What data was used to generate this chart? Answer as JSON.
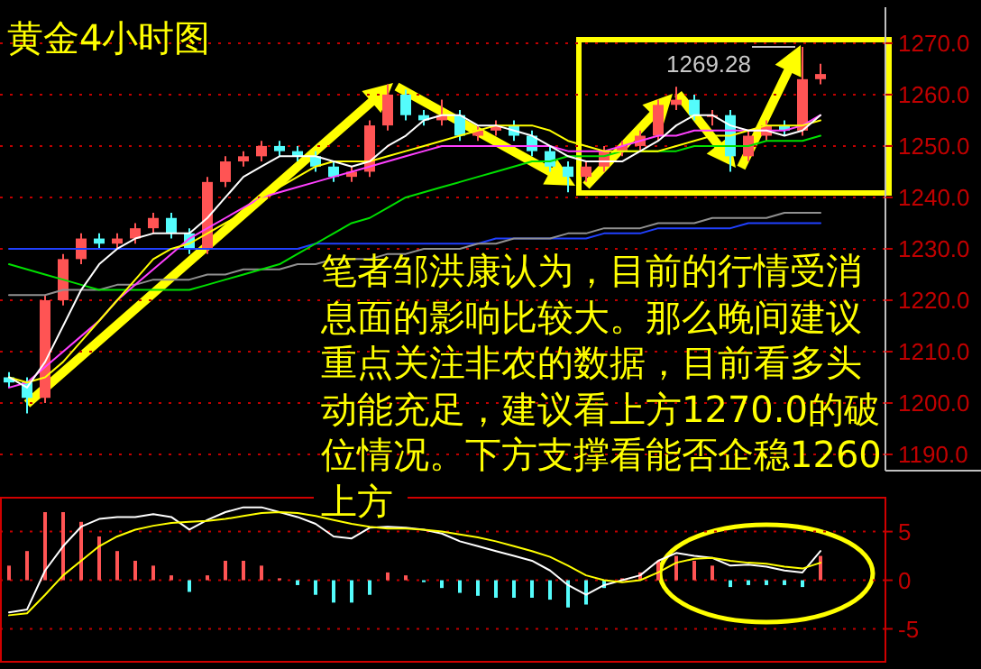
{
  "chart_data": [
    {
      "type": "candlestick",
      "title": "黄金4小时图",
      "annotations": [
        "笔者邹洪康认为，目前的行情受消息面的影响比较大。那么晚间建议重点关注非农的数据，目前看多头动能充足，建议看上方1270.0的破位情况。下方支撑看能否企稳1260上方",
        "1269.28"
      ],
      "categories": [
        null,
        null,
        null,
        null,
        null,
        null,
        null,
        null,
        null,
        null,
        null,
        null,
        null,
        null,
        null,
        null,
        null,
        null,
        null,
        null,
        null,
        null,
        null,
        null,
        null,
        null,
        null,
        null,
        null,
        null,
        null,
        null,
        null,
        null,
        null,
        null,
        null,
        null,
        null,
        null,
        null,
        null,
        null,
        null,
        null,
        null
      ],
      "ohlc": [
        [
          1205,
          1206,
          1203,
          1204
        ],
        [
          1204,
          1205,
          1198,
          1201
        ],
        [
          1201,
          1221,
          1200,
          1220
        ],
        [
          1220,
          1229,
          1219,
          1228
        ],
        [
          1228,
          1233,
          1227,
          1232
        ],
        [
          1232,
          1233,
          1230,
          1231
        ],
        [
          1231,
          1233,
          1230,
          1232
        ],
        [
          1232,
          1235,
          1231,
          1234
        ],
        [
          1234,
          1237,
          1233,
          1236
        ],
        [
          1236,
          1237,
          1232,
          1233
        ],
        [
          1233,
          1234,
          1229,
          1230
        ],
        [
          1230,
          1244,
          1229,
          1243
        ],
        [
          1243,
          1248,
          1242,
          1247
        ],
        [
          1247,
          1249,
          1246,
          1248
        ],
        [
          1248,
          1251,
          1247,
          1250
        ],
        [
          1250,
          1251,
          1248,
          1249
        ],
        [
          1249,
          1250,
          1247,
          1248
        ],
        [
          1248,
          1249,
          1245,
          1246
        ],
        [
          1246,
          1247,
          1243,
          1244
        ],
        [
          1244,
          1246,
          1243,
          1245
        ],
        [
          1245,
          1255,
          1244,
          1254
        ],
        [
          1254,
          1262,
          1253,
          1260
        ],
        [
          1260,
          1261,
          1255,
          1256
        ],
        [
          1256,
          1257,
          1254,
          1255
        ],
        [
          1255,
          1259,
          1254,
          1256
        ],
        [
          1256,
          1257,
          1251,
          1252
        ],
        [
          1252,
          1254,
          1251,
          1253
        ],
        [
          1253,
          1255,
          1252,
          1254
        ],
        [
          1254,
          1255,
          1251,
          1252
        ],
        [
          1252,
          1253,
          1248,
          1249
        ],
        [
          1249,
          1250,
          1245,
          1246
        ],
        [
          1246,
          1247,
          1241,
          1244
        ],
        [
          1244,
          1247,
          1243,
          1246
        ],
        [
          1246,
          1250,
          1245,
          1249
        ],
        [
          1249,
          1251,
          1248,
          1250
        ],
        [
          1250,
          1253,
          1249,
          1252
        ],
        [
          1252,
          1259,
          1251,
          1258
        ],
        [
          1258,
          1261.5,
          1257,
          1259
        ],
        [
          1259,
          1260,
          1255,
          1256
        ],
        [
          1256,
          1257,
          1254,
          1256
        ],
        [
          1256,
          1257,
          1245,
          1248
        ],
        [
          1248,
          1253,
          1247,
          1252
        ],
        [
          1252,
          1255,
          1251,
          1254
        ],
        [
          1254,
          1255,
          1252,
          1253
        ],
        [
          1253,
          1269.28,
          1252,
          1263
        ],
        [
          1263,
          1266,
          1262,
          1264
        ]
      ],
      "colors": [
        "#54fcfc",
        "#54fcfc",
        "#ff5454",
        "#ff5454",
        "#ff5454",
        "#54fcfc",
        "#ff5454",
        "#ff5454",
        "#ff5454",
        "#54fcfc",
        "#54fcfc",
        "#ff5454",
        "#ff5454",
        "#ff5454",
        "#ff5454",
        "#54fcfc",
        "#54fcfc",
        "#54fcfc",
        "#54fcfc",
        "#ff5454",
        "#ff5454",
        "#ff5454",
        "#54fcfc",
        "#54fcfc",
        "#ff5454",
        "#54fcfc",
        "#ff5454",
        "#ff5454",
        "#54fcfc",
        "#54fcfc",
        "#54fcfc",
        "#54fcfc",
        "#ff5454",
        "#ff5454",
        "#ff5454",
        "#ff5454",
        "#ff5454",
        "#ff5454",
        "#54fcfc",
        "#ff5454",
        "#54fcfc",
        "#ff5454",
        "#ff5454",
        "#54fcfc",
        "#ff5454",
        "#ff5454"
      ],
      "series": [
        {
          "type": "line",
          "color": "#2040ff",
          "values": [
            1230,
            1230,
            1230,
            1230,
            1230,
            1230,
            1230,
            1230,
            1230,
            1230,
            1230,
            1230,
            1230,
            1230,
            1230,
            1230,
            1230,
            1231,
            1231,
            1231,
            1231,
            1231,
            1231,
            1231,
            1231,
            1231,
            1231,
            1232,
            1232,
            1232,
            1232,
            1232,
            1232,
            1233,
            1233,
            1233,
            1234,
            1234,
            1234,
            1234,
            1234,
            1235,
            1235,
            1235,
            1235,
            1235
          ]
        },
        {
          "type": "line",
          "color": "#909090",
          "values": [
            1221,
            1221,
            1221,
            1222,
            1222,
            1222,
            1223,
            1223,
            1224,
            1224,
            1224,
            1225,
            1225,
            1226,
            1226,
            1226,
            1227,
            1227,
            1228,
            1228,
            1228,
            1229,
            1229,
            1230,
            1230,
            1230,
            1231,
            1231,
            1232,
            1232,
            1232,
            1233,
            1233,
            1234,
            1234,
            1234,
            1235,
            1235,
            1235,
            1236,
            1236,
            1236,
            1236,
            1237,
            1237,
            1237
          ]
        },
        {
          "type": "line",
          "color": "#00e000",
          "values": [
            1227,
            1226,
            1225,
            1224,
            1223,
            1222,
            1222,
            1222,
            1222,
            1222,
            1222,
            1223,
            1224,
            1225,
            1226,
            1227,
            1229,
            1231,
            1233,
            1235,
            1236,
            1238,
            1240,
            1241,
            1242,
            1243,
            1244,
            1245,
            1246,
            1247,
            1247,
            1248,
            1248,
            1248,
            1249,
            1249,
            1249,
            1249,
            1250,
            1250,
            1250,
            1250,
            1251,
            1251,
            1251,
            1252
          ]
        },
        {
          "type": "line",
          "color": "#ff40ff",
          "values": [
            1203,
            1204,
            1207,
            1210,
            1213,
            1216,
            1220,
            1223,
            1226,
            1229,
            1232,
            1234,
            1236,
            1238,
            1240,
            1241,
            1242,
            1243,
            1244,
            1245,
            1246,
            1247,
            1248,
            1249,
            1250,
            1250,
            1250,
            1250,
            1250,
            1250,
            1250,
            1249,
            1249,
            1249,
            1250,
            1251,
            1252,
            1252,
            1253,
            1253,
            1253,
            1253,
            1253,
            1253,
            1254,
            1256
          ]
        },
        {
          "type": "line",
          "color": "#ffff00",
          "values": [
            1205,
            1204,
            1205,
            1208,
            1212,
            1216,
            1220,
            1224,
            1228,
            1230,
            1231,
            1233,
            1235,
            1237,
            1240,
            1242,
            1244,
            1246,
            1247,
            1247,
            1247,
            1248,
            1249,
            1250,
            1251,
            1252,
            1253,
            1254,
            1254,
            1254,
            1253,
            1251,
            1250,
            1249,
            1249,
            1249,
            1249,
            1250,
            1251,
            1252,
            1252,
            1253,
            1254,
            1254,
            1254,
            1255
          ]
        },
        {
          "type": "line",
          "color": "#ffffff",
          "values": [
            1205,
            1203,
            1208,
            1215,
            1222,
            1227,
            1230,
            1232,
            1233,
            1233,
            1233,
            1236,
            1240,
            1244,
            1246,
            1248,
            1248,
            1248,
            1247,
            1246,
            1247,
            1250,
            1252,
            1255,
            1256,
            1256,
            1254,
            1254,
            1253,
            1252,
            1250,
            1248,
            1247,
            1247,
            1247,
            1249,
            1251,
            1254,
            1256,
            1256,
            1254,
            1253,
            1253,
            1252,
            1253,
            1256
          ]
        }
      ],
      "ylim": [
        1190,
        1277
      ],
      "yticks": [
        {
          "value": 1190,
          "label": "1190.0"
        },
        {
          "value": 1200,
          "label": "1200.0"
        },
        {
          "value": 1210,
          "label": "1210.0"
        },
        {
          "value": 1220,
          "label": "1220.0"
        },
        {
          "value": 1230,
          "label": "1230.0"
        },
        {
          "value": 1240,
          "label": "1240.0"
        },
        {
          "value": 1250,
          "label": "1250.0"
        },
        {
          "value": 1260,
          "label": "1260.0"
        },
        {
          "value": 1270,
          "label": "1270.0"
        }
      ],
      "grid": "y"
    },
    {
      "type": "bar",
      "categories": [
        null,
        null,
        null,
        null,
        null,
        null,
        null,
        null,
        null,
        null,
        null,
        null,
        null,
        null,
        null,
        null,
        null,
        null,
        null,
        null,
        null,
        null,
        null,
        null,
        null,
        null,
        null,
        null,
        null,
        null,
        null,
        null,
        null,
        null,
        null,
        null,
        null,
        null,
        null,
        null,
        null,
        null,
        null,
        null,
        null,
        null
      ],
      "series": [
        {
          "type": "bar",
          "color": "#ff5454",
          "values": [
            1.5,
            3,
            7,
            7,
            6,
            4.5,
            3,
            2,
            1.5,
            0.5,
            null,
            0.5,
            2,
            2,
            1.5,
            0.2,
            null,
            null,
            null,
            null,
            null,
            0.8,
            0.5,
            null,
            null,
            null,
            null,
            null,
            null,
            null,
            null,
            null,
            null,
            null,
            0.2,
            0.8,
            2,
            2.5,
            2,
            1.5,
            null,
            null,
            null,
            null,
            null,
            2.5
          ]
        },
        {
          "type": "bar",
          "color": "#54fcfc",
          "values": [
            null,
            null,
            null,
            null,
            null,
            null,
            null,
            null,
            null,
            null,
            -1.2,
            null,
            null,
            null,
            null,
            null,
            -0.5,
            -1.5,
            -2.3,
            -2.3,
            -1.5,
            null,
            null,
            -0.2,
            -0.8,
            -1.3,
            -1.6,
            -1.8,
            -1.8,
            -1.8,
            -2,
            -2.8,
            -2.5,
            -0.8,
            null,
            null,
            null,
            null,
            null,
            null,
            -0.7,
            -0.5,
            -0.5,
            -0.5,
            -0.7,
            null
          ]
        },
        {
          "type": "line",
          "color": "#ffffff",
          "values": [
            -3.3,
            -3,
            1,
            3.5,
            5.5,
            6.3,
            6.5,
            6.5,
            6.8,
            6.5,
            5.2,
            6.2,
            7,
            7.5,
            7.5,
            7,
            6.5,
            5.8,
            4.5,
            4.3,
            5.4,
            5.5,
            5.4,
            5.2,
            4.8,
            4,
            3.5,
            3,
            2.5,
            2,
            1,
            -0.5,
            -1.5,
            -0.5,
            0,
            0.5,
            2,
            2.8,
            2.5,
            2.3,
            1.5,
            1.6,
            1.4,
            1,
            0.8,
            3
          ]
        },
        {
          "type": "line",
          "color": "#ffff00",
          "values": [
            -3.6,
            -3.4,
            -1.5,
            0.5,
            2,
            3.5,
            4.5,
            5.2,
            5.6,
            5.9,
            6,
            6.1,
            6.3,
            6.6,
            6.9,
            7,
            6.9,
            6.6,
            6.2,
            5.8,
            5.5,
            5.3,
            5.3,
            5.2,
            5,
            4.7,
            4.4,
            4,
            3.5,
            3,
            2.4,
            1.5,
            0.5,
            0,
            -0.2,
            0,
            0.8,
            1.8,
            2.2,
            2.3,
            2,
            1.8,
            1.7,
            1.4,
            1.2,
            1.8
          ]
        }
      ],
      "ylim": [
        -8.2,
        8.3
      ],
      "yticks": [
        5,
        0,
        -5
      ],
      "grid": "y"
    }
  ]
}
